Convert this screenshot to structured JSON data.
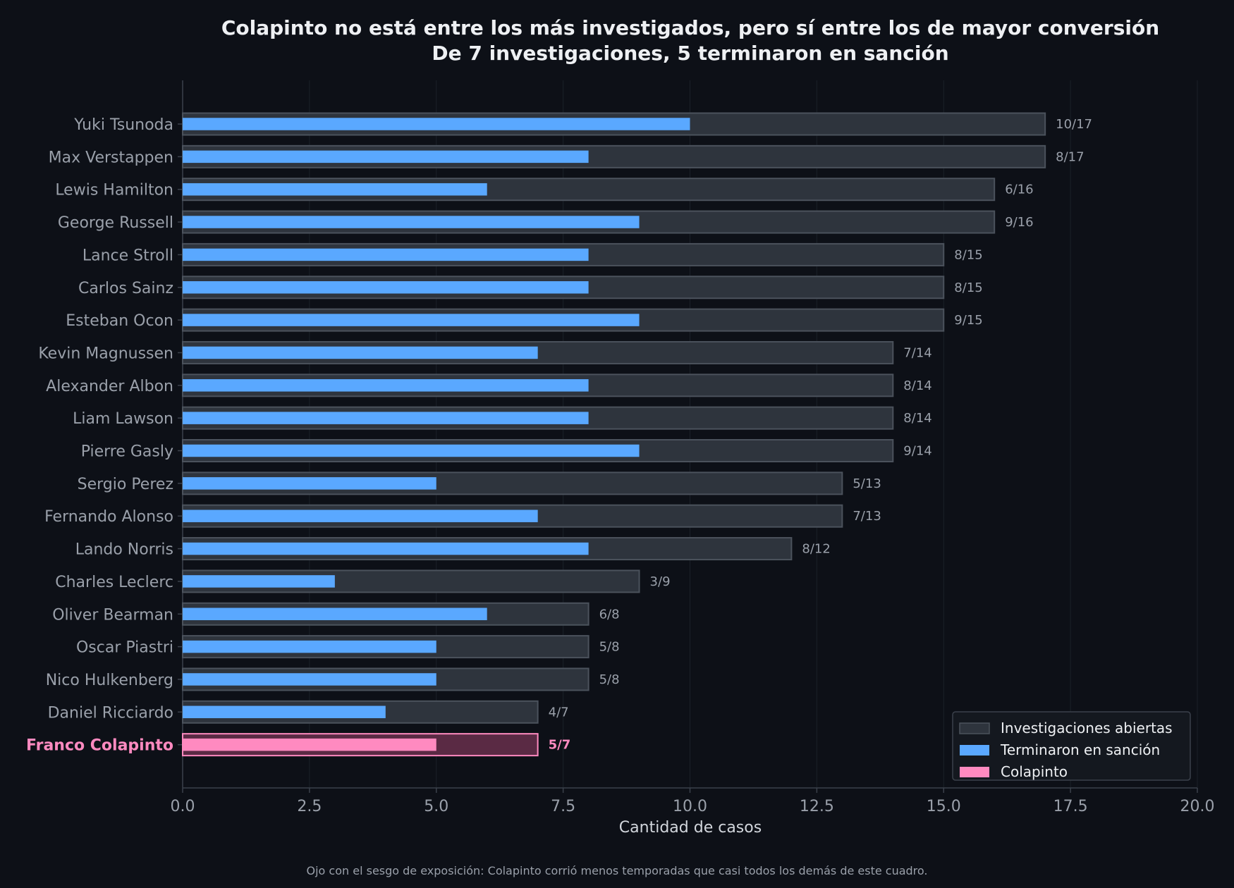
{
  "chart_data": {
    "type": "bar",
    "orientation": "horizontal",
    "title": "Colapinto no está entre los más investigados, pero sí entre los de mayor conversión",
    "subtitle": "De 7 investigaciones, 5 terminaron en sanción",
    "xlabel": "Cantidad de casos",
    "ylabel": "",
    "xlim": [
      0,
      20
    ],
    "xticks": [
      "0.0",
      "2.5",
      "5.0",
      "7.5",
      "10.0",
      "12.5",
      "15.0",
      "17.5",
      "20.0"
    ],
    "grid": "vertical",
    "legend_position": "bottom-right",
    "categories": [
      "Yuki Tsunoda",
      "Max Verstappen",
      "Lewis Hamilton",
      "George Russell",
      "Lance Stroll",
      "Carlos Sainz",
      "Esteban Ocon",
      "Kevin Magnussen",
      "Alexander Albon",
      "Liam Lawson",
      "Pierre Gasly",
      "Sergio Perez",
      "Fernando Alonso",
      "Lando Norris",
      "Charles Leclerc",
      "Oliver Bearman",
      "Oscar Piastri",
      "Nico Hulkenberg",
      "Daniel Ricciardo",
      "Franco Colapinto"
    ],
    "series": [
      {
        "name": "Investigaciones abiertas",
        "values": [
          17,
          17,
          16,
          16,
          15,
          15,
          15,
          14,
          14,
          14,
          14,
          13,
          13,
          12,
          9,
          8,
          8,
          8,
          7,
          7
        ]
      },
      {
        "name": "Terminaron en sanción",
        "values": [
          10,
          8,
          6,
          9,
          8,
          8,
          9,
          7,
          8,
          8,
          9,
          5,
          7,
          8,
          3,
          6,
          5,
          5,
          4,
          5
        ]
      }
    ],
    "highlight": {
      "category": "Franco Colapinto",
      "legend_name": "Colapinto"
    },
    "value_labels": [
      "10/17",
      "8/17",
      "6/16",
      "9/16",
      "8/15",
      "8/15",
      "9/15",
      "7/14",
      "8/14",
      "8/14",
      "9/14",
      "5/13",
      "7/13",
      "8/12",
      "3/9",
      "6/8",
      "5/8",
      "5/8",
      "4/7",
      "5/7"
    ],
    "footnote": "Ojo con el sesgo de exposición: Colapinto corrió menos temporadas que casi todos los demás de este cuadro.",
    "colors": {
      "background": "#0d1017",
      "opened_fill": "#2e343d",
      "opened_stroke": "#4b525c",
      "sanctioned": "#5aa8ff",
      "highlight": "#ff8ac0",
      "highlight_bg": "#5a2a44",
      "text_muted": "#9aa0aa",
      "text_bright": "#eef0f3",
      "grid": "#1b2029",
      "axis": "#3b414b",
      "legend_bg": "#14181f",
      "legend_border": "#3b414b"
    }
  }
}
